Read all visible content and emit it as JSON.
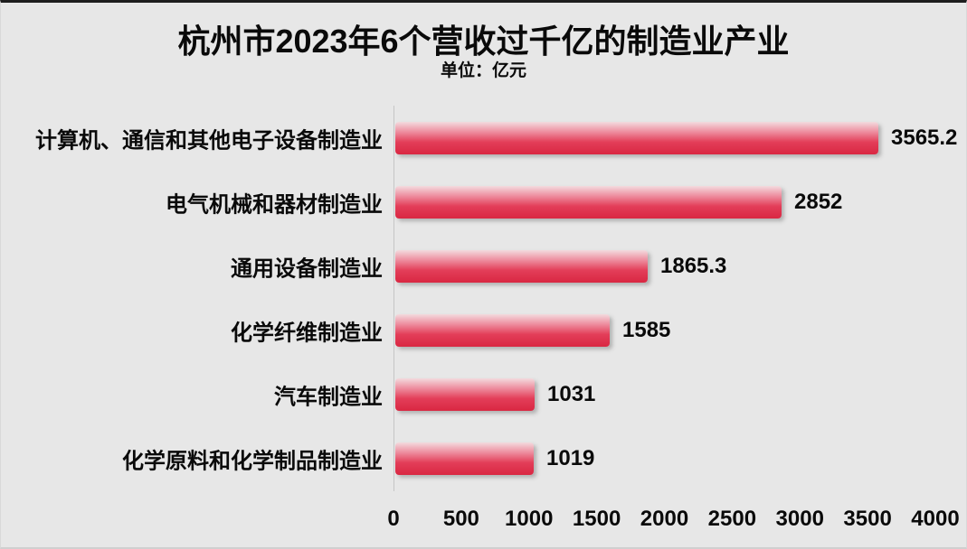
{
  "title": "杭州市2023年6个营收过千亿的制造业产业",
  "subtitle": "单位：亿元",
  "chart_data": {
    "type": "bar",
    "orientation": "horizontal",
    "title": "杭州市2023年6个营收过千亿的制造业产业",
    "unit_label": "单位：亿元",
    "categories": [
      "计算机、通信和其他电子设备制造业",
      "电气机械和器材制造业",
      "通用设备制造业",
      "化学纤维制造业",
      "汽车制造业",
      "化学原料和化学制品制造业"
    ],
    "values": [
      3565.2,
      2852,
      1865.3,
      1585,
      1031,
      1019
    ],
    "xlim": [
      0,
      4000
    ],
    "x_ticks": [
      0,
      500,
      1000,
      1500,
      2000,
      2500,
      3000,
      3500,
      4000
    ],
    "grid": false,
    "legend": false,
    "data_labels_shown": true,
    "styles": {
      "background": "#e7e7e7",
      "bar_gradient_top": "#f3dade",
      "bar_gradient_upper_mid": "#ee8fa0",
      "bar_gradient_lower_mid": "#e33e59",
      "bar_gradient_bottom": "#d92742",
      "text_color": "#0a0a0a",
      "axis_line_color": "#c6c6c6"
    }
  }
}
